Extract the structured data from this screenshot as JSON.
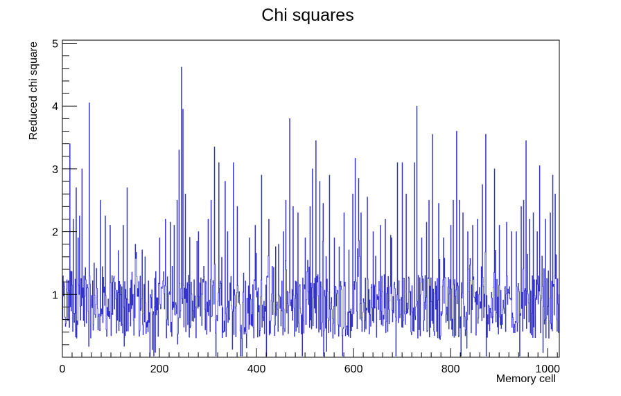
{
  "chart_data": {
    "type": "line",
    "title": "Chi squares",
    "xlabel": "Memory cell",
    "ylabel": "Reduced chi square",
    "xlim": [
      0,
      1024
    ],
    "ylim": [
      0,
      5.05
    ],
    "x_ticks": [
      0,
      200,
      400,
      600,
      800,
      1000
    ],
    "y_ticks": [
      1,
      2,
      3,
      4,
      5
    ],
    "x_tick_labels": [
      "0",
      "200",
      "400",
      "600",
      "800",
      "1000"
    ],
    "y_tick_labels": [
      "1",
      "2",
      "3",
      "4",
      "5"
    ],
    "grid": false,
    "legend": "none",
    "line_color": "#3333cc",
    "series": [
      {
        "x_start": 0,
        "x_step": 1,
        "baseline": 0.8,
        "spikes": [
          {
            "x": 15,
            "y": 3.4
          },
          {
            "x": 22,
            "y": 2.2
          },
          {
            "x": 28,
            "y": 2.7
          },
          {
            "x": 32,
            "y": 1.9
          },
          {
            "x": 35,
            "y": 2.25
          },
          {
            "x": 40,
            "y": 3.0
          },
          {
            "x": 55,
            "y": 4.05
          },
          {
            "x": 65,
            "y": 1.5
          },
          {
            "x": 78,
            "y": 2.5
          },
          {
            "x": 88,
            "y": 2.25
          },
          {
            "x": 98,
            "y": 2.1
          },
          {
            "x": 115,
            "y": 1.7
          },
          {
            "x": 125,
            "y": 2.1
          },
          {
            "x": 133,
            "y": 2.7
          },
          {
            "x": 150,
            "y": 1.8
          },
          {
            "x": 170,
            "y": 1.6
          },
          {
            "x": 200,
            "y": 1.9
          },
          {
            "x": 212,
            "y": 2.2
          },
          {
            "x": 222,
            "y": 2.15
          },
          {
            "x": 230,
            "y": 2.1
          },
          {
            "x": 236,
            "y": 2.5
          },
          {
            "x": 240,
            "y": 3.3
          },
          {
            "x": 245,
            "y": 4.62
          },
          {
            "x": 248,
            "y": 3.95
          },
          {
            "x": 253,
            "y": 2.6
          },
          {
            "x": 280,
            "y": 2.0
          },
          {
            "x": 300,
            "y": 2.2
          },
          {
            "x": 306,
            "y": 2.5
          },
          {
            "x": 313,
            "y": 3.35
          },
          {
            "x": 322,
            "y": 3.1
          },
          {
            "x": 335,
            "y": 2.8
          },
          {
            "x": 340,
            "y": 2.0
          },
          {
            "x": 352,
            "y": 3.1
          },
          {
            "x": 360,
            "y": 2.4
          },
          {
            "x": 385,
            "y": 1.9
          },
          {
            "x": 397,
            "y": 2.1
          },
          {
            "x": 410,
            "y": 2.9
          },
          {
            "x": 425,
            "y": 2.2
          },
          {
            "x": 445,
            "y": 1.8
          },
          {
            "x": 455,
            "y": 2.0
          },
          {
            "x": 460,
            "y": 2.5
          },
          {
            "x": 468,
            "y": 3.8
          },
          {
            "x": 475,
            "y": 2.4
          },
          {
            "x": 485,
            "y": 2.3
          },
          {
            "x": 500,
            "y": 1.9
          },
          {
            "x": 510,
            "y": 2.4
          },
          {
            "x": 515,
            "y": 3.0
          },
          {
            "x": 522,
            "y": 3.45
          },
          {
            "x": 530,
            "y": 2.8
          },
          {
            "x": 537,
            "y": 2.45
          },
          {
            "x": 550,
            "y": 2.9
          },
          {
            "x": 560,
            "y": 1.9
          },
          {
            "x": 580,
            "y": 2.3
          },
          {
            "x": 598,
            "y": 2.6
          },
          {
            "x": 603,
            "y": 3.17
          },
          {
            "x": 610,
            "y": 2.85
          },
          {
            "x": 615,
            "y": 2.3
          },
          {
            "x": 628,
            "y": 2.55
          },
          {
            "x": 640,
            "y": 2.0
          },
          {
            "x": 655,
            "y": 2.1
          },
          {
            "x": 665,
            "y": 2.2
          },
          {
            "x": 678,
            "y": 1.9
          },
          {
            "x": 690,
            "y": 3.1
          },
          {
            "x": 700,
            "y": 3.1
          },
          {
            "x": 708,
            "y": 2.6
          },
          {
            "x": 725,
            "y": 3.1
          },
          {
            "x": 730,
            "y": 4.0
          },
          {
            "x": 740,
            "y": 1.9
          },
          {
            "x": 750,
            "y": 2.15
          },
          {
            "x": 755,
            "y": 2.5
          },
          {
            "x": 762,
            "y": 3.55
          },
          {
            "x": 775,
            "y": 2.45
          },
          {
            "x": 785,
            "y": 1.9
          },
          {
            "x": 800,
            "y": 2.1
          },
          {
            "x": 805,
            "y": 2.5
          },
          {
            "x": 812,
            "y": 3.6
          },
          {
            "x": 818,
            "y": 2.5
          },
          {
            "x": 825,
            "y": 2.3
          },
          {
            "x": 835,
            "y": 2.0
          },
          {
            "x": 845,
            "y": 2.1
          },
          {
            "x": 855,
            "y": 2.2
          },
          {
            "x": 865,
            "y": 2.75
          },
          {
            "x": 872,
            "y": 3.55
          },
          {
            "x": 890,
            "y": 3.0
          },
          {
            "x": 900,
            "y": 2.1
          },
          {
            "x": 915,
            "y": 2.15
          },
          {
            "x": 925,
            "y": 2.0
          },
          {
            "x": 935,
            "y": 2.0
          },
          {
            "x": 945,
            "y": 2.4
          },
          {
            "x": 950,
            "y": 2.5
          },
          {
            "x": 955,
            "y": 3.45
          },
          {
            "x": 962,
            "y": 2.2
          },
          {
            "x": 970,
            "y": 2.3
          },
          {
            "x": 978,
            "y": 2.0
          },
          {
            "x": 983,
            "y": 3.05
          },
          {
            "x": 995,
            "y": 2.2
          },
          {
            "x": 1005,
            "y": 2.3
          },
          {
            "x": 1010,
            "y": 2.9
          },
          {
            "x": 1015,
            "y": 2.6
          }
        ]
      }
    ]
  }
}
